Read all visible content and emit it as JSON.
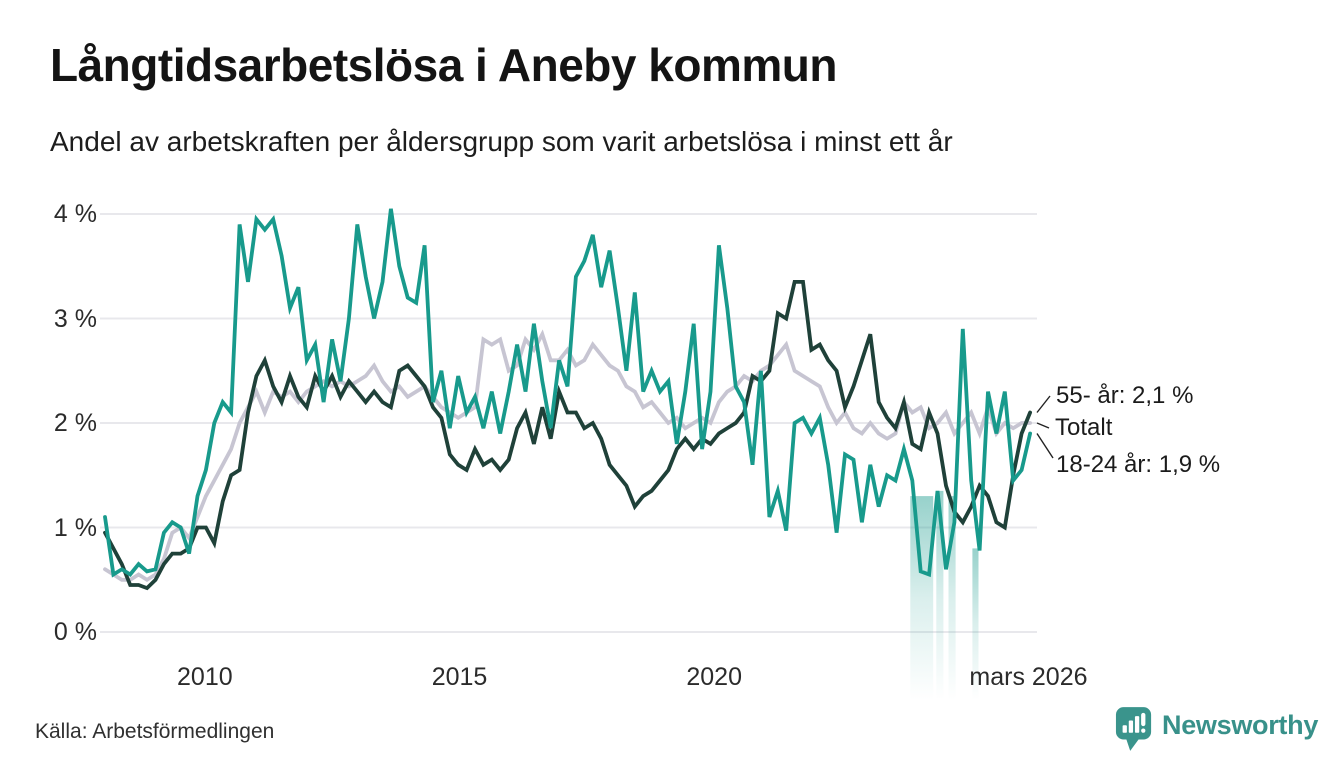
{
  "page": {
    "title": "Långtidsarbetslösa i Aneby kommun",
    "subtitle": "Andel av arbetskraften per åldersgrupp som varit arbetslösa i minst ett år",
    "source": "Källa: Arbetsförmedlingen",
    "brand": "Newsworthy"
  },
  "chart_data": {
    "type": "line",
    "title": "Långtidsarbetslösa i Aneby kommun",
    "subtitle": "Andel av arbetskraften per åldersgrupp som varit arbetslösa i minst ett år",
    "unit": "%",
    "grid": true,
    "legend_position": "right-edge-labels",
    "colors": {
      "grid": "#e8e8ec",
      "band": "#189a8c",
      "leader": "#222222"
    },
    "x_axis": {
      "min_year": 2008.04,
      "max_year": 2026.2,
      "ticks": [
        {
          "label": "2010",
          "year": 2010
        },
        {
          "label": "2015",
          "year": 2015
        },
        {
          "label": "2020",
          "year": 2020
        },
        {
          "label": "mars 2026",
          "year": 2026.17
        }
      ]
    },
    "y_axis": {
      "min": 0,
      "max": 4,
      "ticks": [
        {
          "label": "4 %",
          "value": 4
        },
        {
          "label": "3 %",
          "value": 3
        },
        {
          "label": "2 %",
          "value": 2
        },
        {
          "label": "1 %",
          "value": 1
        },
        {
          "label": "0 %",
          "value": 0
        }
      ]
    },
    "series": [
      {
        "id": "totalt",
        "name": "Totalt",
        "end_label": "Totalt",
        "color": "#c7c5d2",
        "start_year": 2008.04,
        "step_years": 0.1651,
        "values": [
          0.6,
          0.55,
          0.5,
          0.5,
          0.55,
          0.5,
          0.55,
          0.7,
          0.95,
          1.0,
          0.9,
          1.1,
          1.3,
          1.45,
          1.6,
          1.75,
          2.0,
          2.15,
          2.3,
          2.1,
          2.3,
          2.25,
          2.3,
          2.2,
          2.3,
          2.35,
          2.4,
          2.35,
          2.4,
          2.35,
          2.4,
          2.45,
          2.55,
          2.4,
          2.3,
          2.35,
          2.25,
          2.3,
          2.35,
          2.25,
          2.15,
          2.1,
          2.05,
          2.1,
          2.15,
          2.8,
          2.75,
          2.8,
          2.5,
          2.55,
          2.8,
          2.7,
          2.85,
          2.6,
          2.6,
          2.7,
          2.55,
          2.6,
          2.75,
          2.65,
          2.55,
          2.5,
          2.35,
          2.3,
          2.15,
          2.2,
          2.1,
          2.0,
          2.05,
          1.95,
          2.0,
          2.05,
          2.0,
          2.2,
          2.3,
          2.35,
          2.45,
          2.4,
          2.5,
          2.55,
          2.65,
          2.75,
          2.5,
          2.45,
          2.4,
          2.35,
          2.15,
          2.0,
          2.1,
          1.95,
          1.9,
          2.0,
          1.9,
          1.85,
          1.9,
          2.2,
          2.1,
          2.15,
          1.95,
          2.0,
          2.1,
          1.9,
          2.0,
          2.1,
          1.9,
          2.15,
          1.9,
          2.0,
          1.95,
          2.0,
          2.0
        ]
      },
      {
        "id": "55-ar",
        "name": "55- år",
        "end_label": "55- år: 2,1 %",
        "latest_value_text": "2,1 %",
        "color": "#1f4139",
        "start_year": 2008.04,
        "step_years": 0.1651,
        "values": [
          0.95,
          0.8,
          0.65,
          0.45,
          0.45,
          0.42,
          0.5,
          0.65,
          0.75,
          0.75,
          0.8,
          1.0,
          1.0,
          0.85,
          1.25,
          1.5,
          1.55,
          2.1,
          2.45,
          2.6,
          2.35,
          2.2,
          2.45,
          2.25,
          2.15,
          2.45,
          2.3,
          2.45,
          2.25,
          2.4,
          2.3,
          2.2,
          2.3,
          2.2,
          2.15,
          2.5,
          2.55,
          2.45,
          2.35,
          2.15,
          2.05,
          1.7,
          1.6,
          1.55,
          1.75,
          1.6,
          1.65,
          1.55,
          1.65,
          1.95,
          2.1,
          1.8,
          2.15,
          1.85,
          2.3,
          2.1,
          2.1,
          1.95,
          2.0,
          1.85,
          1.6,
          1.5,
          1.4,
          1.2,
          1.3,
          1.35,
          1.45,
          1.55,
          1.75,
          1.85,
          1.75,
          1.85,
          1.8,
          1.9,
          1.95,
          2.0,
          2.1,
          2.45,
          2.4,
          2.5,
          3.05,
          3.0,
          3.35,
          3.35,
          2.7,
          2.75,
          2.6,
          2.5,
          2.15,
          2.35,
          2.6,
          2.85,
          2.2,
          2.05,
          1.95,
          2.2,
          1.8,
          1.75,
          2.1,
          1.9,
          1.4,
          1.15,
          1.05,
          1.2,
          1.4,
          1.3,
          1.05,
          1.0,
          1.5,
          1.9,
          2.1
        ]
      },
      {
        "id": "18-24-ar",
        "name": "18-24 år",
        "end_label": "18-24 år: 1,9 %",
        "latest_value_text": "1,9 %",
        "color": "#189a8c",
        "start_year": 2008.04,
        "step_years": 0.1651,
        "values": [
          1.1,
          0.55,
          0.6,
          0.55,
          0.65,
          0.58,
          0.6,
          0.95,
          1.05,
          1.0,
          0.75,
          1.3,
          1.55,
          2.0,
          2.2,
          2.1,
          3.9,
          3.35,
          3.95,
          3.85,
          3.95,
          3.6,
          3.1,
          3.3,
          2.6,
          2.75,
          2.2,
          2.8,
          2.4,
          3.0,
          3.9,
          3.4,
          3.0,
          3.35,
          4.05,
          3.5,
          3.2,
          3.15,
          3.7,
          2.2,
          2.5,
          1.95,
          2.45,
          2.1,
          2.25,
          1.95,
          2.3,
          1.9,
          2.3,
          2.75,
          2.3,
          2.95,
          2.4,
          1.95,
          2.6,
          2.35,
          3.4,
          3.55,
          3.8,
          3.3,
          3.65,
          3.1,
          2.5,
          3.25,
          2.3,
          2.5,
          2.3,
          2.4,
          1.8,
          2.3,
          2.95,
          1.75,
          2.3,
          3.7,
          3.1,
          2.35,
          2.2,
          1.6,
          2.5,
          1.1,
          1.35,
          0.97,
          2.0,
          2.05,
          1.9,
          2.05,
          1.6,
          0.95,
          1.7,
          1.65,
          1.05,
          1.6,
          1.2,
          1.5,
          1.45,
          1.75,
          1.45,
          0.58,
          0.55,
          1.35,
          0.6,
          1.05,
          2.9,
          1.45,
          0.78,
          2.3,
          1.9,
          2.3,
          1.45,
          1.55,
          1.9
        ]
      }
    ],
    "uncertainty_bands": [
      {
        "series": "18-24 år",
        "from_year": 2023.85,
        "to_year": 2024.3,
        "top_value": 1.3
      },
      {
        "series": "18-24 år",
        "from_year": 2024.36,
        "to_year": 2024.5,
        "top_value": 1.35
      },
      {
        "series": "18-24 år",
        "from_year": 2024.6,
        "to_year": 2024.74,
        "top_value": 1.3
      },
      {
        "series": "18-24 år",
        "from_year": 2025.07,
        "to_year": 2025.19,
        "top_value": 0.8
      }
    ],
    "annotations": [
      {
        "series_index": 1,
        "text": "55- år: 2,1 %"
      },
      {
        "series_index": 0,
        "text": "Totalt"
      },
      {
        "series_index": 2,
        "text": "18-24 år: 1,9 %"
      }
    ]
  }
}
